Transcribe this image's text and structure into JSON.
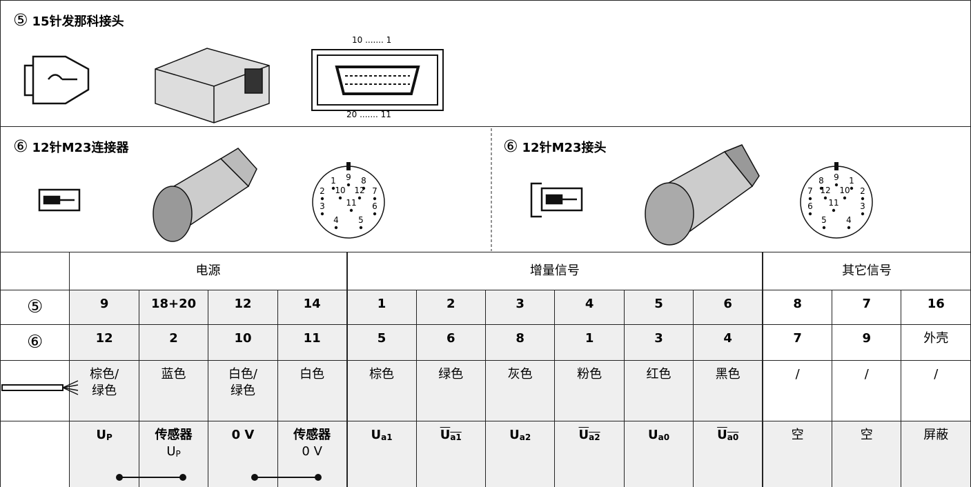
{
  "connector_5": {
    "number": "⑤",
    "title": "15针发那科接头",
    "pins_top": "10 ....... 1",
    "pins_bottom": "20 ....... 11"
  },
  "connector_6a": {
    "number": "⑥",
    "title": "12针M23连接器",
    "pins": [
      "1",
      "2",
      "3",
      "4",
      "5",
      "6",
      "7",
      "8",
      "9",
      "10",
      "11",
      "12"
    ]
  },
  "connector_6b": {
    "number": "⑥",
    "title": "12针M23接头",
    "pins": [
      "1",
      "2",
      "3",
      "4",
      "5",
      "6",
      "7",
      "8",
      "9",
      "10",
      "11",
      "12"
    ]
  },
  "table": {
    "groups": [
      "电源",
      "增量信号",
      "其它信号"
    ],
    "rows": [
      {
        "label": "⑤",
        "cells": [
          "9",
          "18+20",
          "12",
          "14",
          "1",
          "2",
          "3",
          "4",
          "5",
          "6",
          "8",
          "7",
          "16"
        ]
      },
      {
        "label": "⑥",
        "cells": [
          "12",
          "2",
          "10",
          "11",
          "5",
          "6",
          "8",
          "1",
          "3",
          "4",
          "7",
          "9",
          "外壳"
        ]
      }
    ],
    "colors": [
      "棕色/\n绿色",
      "蓝色",
      "白色/\n绿色",
      "白色",
      "棕色",
      "绿色",
      "灰色",
      "粉色",
      "红色",
      "黑色",
      "/",
      "/",
      "/"
    ],
    "signals": [
      {
        "text": "U",
        "sub": "P"
      },
      {
        "text": "传感器",
        "line2": "U",
        "line2_sub": "P"
      },
      {
        "text": "0 V"
      },
      {
        "text": "传感器",
        "line2": "0 V"
      },
      {
        "text": "U",
        "sub": "a1"
      },
      {
        "text": "U",
        "sub": "a1",
        "overline": true
      },
      {
        "text": "U",
        "sub": "a2"
      },
      {
        "text": "U",
        "sub": "a2",
        "overline": true
      },
      {
        "text": "U",
        "sub": "a0"
      },
      {
        "text": "U",
        "sub": "a0",
        "overline": true
      },
      {
        "text": "空",
        "plain": true
      },
      {
        "text": "空",
        "plain": true
      },
      {
        "text": "屏蔽",
        "plain": true
      }
    ]
  }
}
